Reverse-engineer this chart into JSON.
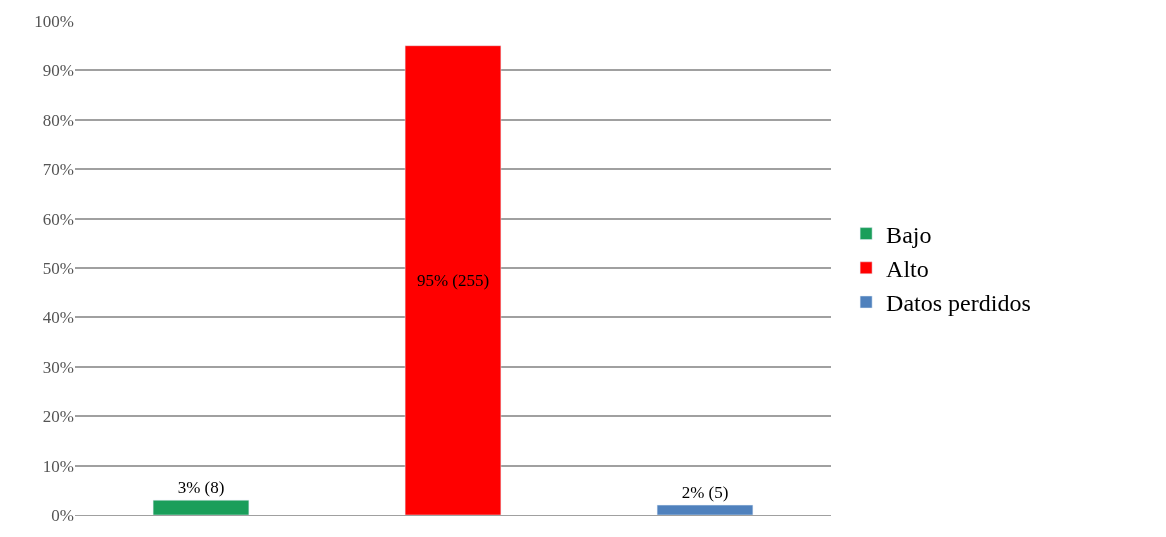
{
  "chart_data": {
    "type": "bar",
    "categories": [
      null,
      null,
      null
    ],
    "series": [
      {
        "name": "Bajo",
        "color": "#1a9e5a",
        "values": [
          3,
          null,
          null
        ],
        "value_labels": [
          "3% (8)",
          null,
          null
        ]
      },
      {
        "name": "Alto",
        "color": "#ff0000",
        "values": [
          null,
          95,
          null
        ],
        "value_labels": [
          null,
          "95% (255)",
          null
        ]
      },
      {
        "name": "Datos perdidos",
        "color": "#4f81bd",
        "values": [
          null,
          null,
          2
        ],
        "value_labels": [
          null,
          null,
          "2% (5)"
        ]
      }
    ],
    "ylim": [
      0,
      100
    ],
    "yticks": [
      {
        "value": 0,
        "label": "0%"
      },
      {
        "value": 10,
        "label": "10%"
      },
      {
        "value": 20,
        "label": "20%"
      },
      {
        "value": 30,
        "label": "30%"
      },
      {
        "value": 40,
        "label": "40%"
      },
      {
        "value": 50,
        "label": "50%"
      },
      {
        "value": 60,
        "label": "60%"
      },
      {
        "value": 70,
        "label": "70%"
      },
      {
        "value": 80,
        "label": "80%"
      },
      {
        "value": 90,
        "label": "90%"
      },
      {
        "value": 100,
        "label": "100%"
      }
    ],
    "grid": "y",
    "legend": "right",
    "tick_labels": "y"
  }
}
